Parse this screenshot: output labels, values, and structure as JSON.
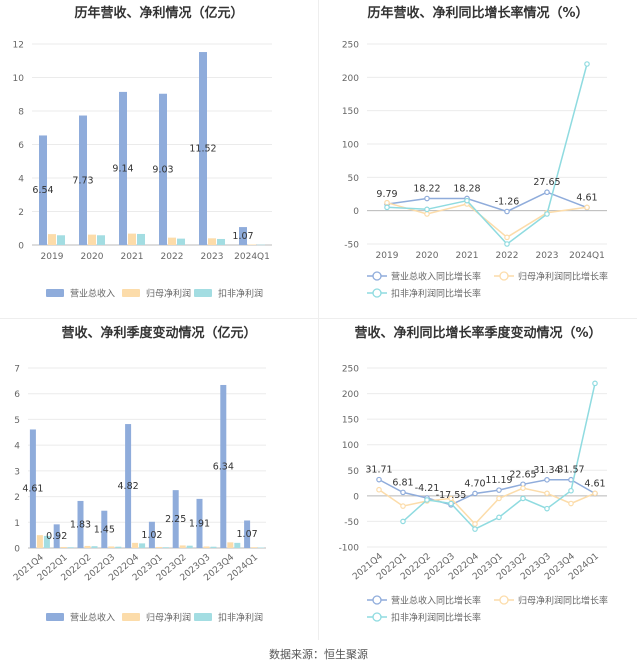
{
  "charts": [
    {
      "id": "p1",
      "type": "bar",
      "title": "历年营收、净利情况（亿元）",
      "categories": [
        "2019",
        "2020",
        "2021",
        "2022",
        "2023",
        "2024Q1"
      ],
      "series": [
        {
          "name": "营业总收入",
          "values": [
            6.54,
            7.73,
            9.14,
            9.03,
            11.52,
            1.07
          ],
          "color": "#8facdb"
        },
        {
          "name": "归母净利润",
          "values": [
            0.65,
            0.62,
            0.68,
            0.44,
            0.4,
            0.03
          ],
          "color": "#fcdcaa"
        },
        {
          "name": "扣非净利润",
          "values": [
            0.58,
            0.58,
            0.66,
            0.38,
            0.36,
            0.02
          ],
          "color": "#a3dde2"
        }
      ],
      "labels": [
        "6.54",
        "7.73",
        "9.14",
        "9.03",
        "11.52",
        "1.07"
      ],
      "ylim": [
        0,
        12
      ],
      "yticks": [
        "0",
        "2",
        "4",
        "6",
        "8",
        "10",
        "12"
      ]
    },
    {
      "id": "p2",
      "type": "line",
      "title": "历年营收、净利同比增长率情况（%）",
      "categories": [
        "2019",
        "2020",
        "2021",
        "2022",
        "2023",
        "2024Q1"
      ],
      "series": [
        {
          "name": "营业总收入同比增长率",
          "values": [
            9.79,
            18.22,
            18.28,
            -1.26,
            27.65,
            4.61
          ],
          "color": "#8facdb"
        },
        {
          "name": "归母净利润同比增长率",
          "values": [
            12,
            -5,
            10,
            -40,
            -3,
            5
          ],
          "color": "#fcdcaa"
        },
        {
          "name": "扣非净利润同比增长率",
          "values": [
            5,
            2,
            15,
            -50,
            -5,
            220
          ],
          "color": "#8fdbe0"
        }
      ],
      "labels": [
        "9.79",
        "18.22",
        "18.28",
        "-1.26",
        "27.65",
        "4.61"
      ],
      "ylim": [
        -50,
        250
      ],
      "yticks": [
        "-50",
        "0",
        "50",
        "100",
        "150",
        "200",
        "250"
      ]
    },
    {
      "id": "p3",
      "type": "bar",
      "title": "营收、净利季度变动情况（亿元）",
      "categories": [
        "2021Q4",
        "2022Q1",
        "2022Q2",
        "2022Q3",
        "2022Q4",
        "2023Q1",
        "2023Q2",
        "2023Q3",
        "2023Q4",
        "2024Q1"
      ],
      "series": [
        {
          "name": "营业总收入",
          "values": [
            4.61,
            0.92,
            1.83,
            1.45,
            4.82,
            1.02,
            2.25,
            1.91,
            6.34,
            1.07
          ],
          "color": "#8facdb"
        },
        {
          "name": "归母净利润",
          "values": [
            0.5,
            0.04,
            0.08,
            0.06,
            0.2,
            0.04,
            0.1,
            0.06,
            0.22,
            0.03
          ],
          "color": "#fcdcaa"
        },
        {
          "name": "扣非净利润",
          "values": [
            0.47,
            0.03,
            0.07,
            0.05,
            0.18,
            0.03,
            0.09,
            0.05,
            0.2,
            0.02
          ],
          "color": "#a3dde2"
        }
      ],
      "labels": [
        "4.61",
        "0.92",
        "1.83",
        "1.45",
        "4.82",
        "1.02",
        "2.25",
        "1.91",
        "6.34",
        "1.07"
      ],
      "ylim": [
        0,
        7
      ],
      "yticks": [
        "0",
        "1",
        "2",
        "3",
        "4",
        "5",
        "6",
        "7"
      ]
    },
    {
      "id": "p4",
      "type": "line",
      "title": "营收、净利同比增长率季度变动情况（%）",
      "categories": [
        "2021Q4",
        "2022Q1",
        "2022Q2",
        "2022Q3",
        "2022Q4",
        "2023Q1",
        "2023Q2",
        "2023Q3",
        "2023Q4",
        "2024Q1"
      ],
      "series": [
        {
          "name": "营业总收入同比增长率",
          "values": [
            31.71,
            6.81,
            -4.21,
            -17.55,
            4.7,
            11.19,
            22.65,
            31.34,
            31.57,
            4.61
          ],
          "color": "#8facdb"
        },
        {
          "name": "归母净利润同比增长率",
          "values": [
            12,
            -20,
            -10,
            -5,
            -55,
            -5,
            15,
            5,
            -15,
            5
          ],
          "color": "#fcdcaa"
        },
        {
          "name": "扣非净利润同比增长率",
          "values": [
            null,
            -50,
            -8,
            -15,
            -65,
            -42,
            -5,
            -25,
            10,
            220
          ],
          "color": "#8fdbe0"
        }
      ],
      "labels": [
        "31.71",
        "6.81",
        "-4.21",
        "-17.55",
        "4.70",
        "11.19",
        "22.65",
        "31.34",
        "31.57",
        "4.61"
      ],
      "ylim": [
        -100,
        250
      ],
      "yticks": [
        "-100",
        "-50",
        "0",
        "50",
        "100",
        "150",
        "200",
        "250"
      ]
    }
  ],
  "source_label": "数据来源：",
  "source_name": "恒生聚源"
}
